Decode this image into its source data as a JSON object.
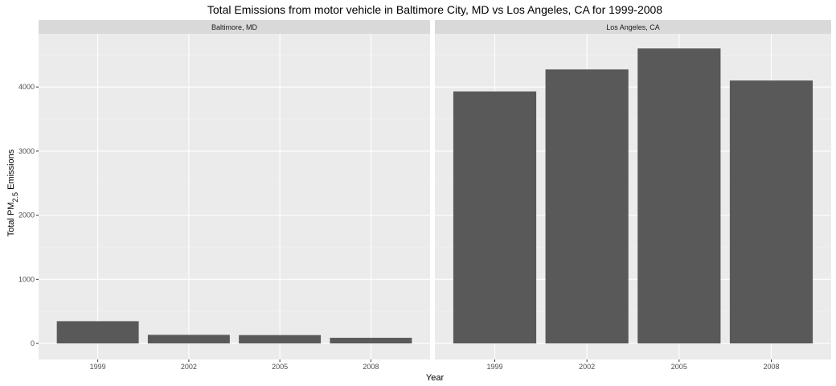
{
  "chart_data": {
    "type": "bar",
    "title": "Total Emissions from motor vehicle in Baltimore City, MD vs Los Angeles, CA for 1999-2008",
    "xlabel": "Year",
    "ylabel": {
      "prefix": "Total PM",
      "subscript": "2.5",
      "suffix": " Emissions"
    },
    "categories": [
      "1999",
      "2002",
      "2005",
      "2008"
    ],
    "yticks": [
      0,
      1000,
      2000,
      3000,
      4000
    ],
    "ylim": [
      -250,
      4830
    ],
    "grid": true,
    "colors": {
      "bar": "#595959",
      "panel": "#ebebeb",
      "strip": "#d9d9d9",
      "grid_major": "#ffffff",
      "grid_minor": "#f2f2f2"
    },
    "panels": [
      {
        "label": "Baltimore, MD",
        "values": [
          347,
          134,
          130,
          88
        ]
      },
      {
        "label": "Los Angeles, CA",
        "values": [
          3931,
          4274,
          4601,
          4101
        ]
      }
    ]
  }
}
